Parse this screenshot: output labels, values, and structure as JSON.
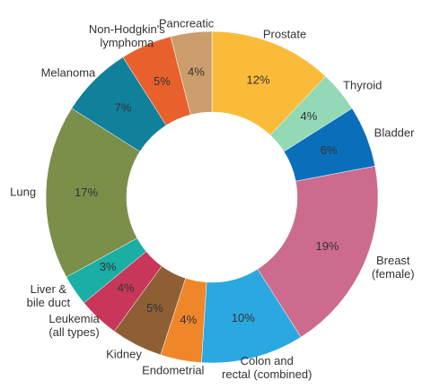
{
  "chart_data": {
    "type": "donut",
    "categories": [
      "Prostate",
      "Thyroid",
      "Bladder",
      "Breast\n(female)",
      "Colon and\nrectal (combined)",
      "Endometrial",
      "Kidney",
      "Leukemia\n(all types)",
      "Liver &\nbile duct",
      "Lung",
      "Melanoma",
      "Non-Hodgkin's\nlymphoma",
      "Pancreatic"
    ],
    "values": [
      12,
      4,
      6,
      19,
      10,
      4,
      5,
      4,
      3,
      17,
      7,
      5,
      4
    ],
    "value_labels": [
      "12%",
      "4%",
      "6%",
      "19%",
      "10%",
      "4%",
      "5%",
      "4%",
      "3%",
      "17%",
      "7%",
      "5%",
      "4%"
    ],
    "colors": [
      "#fbbb3a",
      "#93d9b5",
      "#0a6fba",
      "#cc6b8e",
      "#2ba8e0",
      "#f0862a",
      "#8e5f35",
      "#c8375a",
      "#1aaea5",
      "#7b8f4a",
      "#11809a",
      "#e8612c",
      "#cc9d6c"
    ]
  }
}
